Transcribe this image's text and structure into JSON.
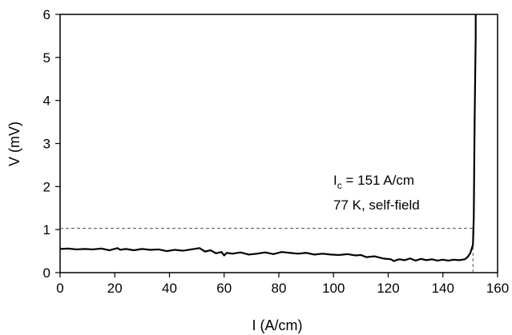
{
  "chart_data": {
    "type": "line",
    "xlabel": "I (A/cm)",
    "ylabel": "V (mV)",
    "xlim": [
      0,
      160
    ],
    "ylim": [
      0,
      6
    ],
    "xticks": [
      "0",
      "20",
      "40",
      "60",
      "80",
      "100",
      "120",
      "140",
      "160"
    ],
    "yticks": [
      "0",
      "1",
      "2",
      "3",
      "4",
      "5",
      "6"
    ],
    "grid": false,
    "legend": "none",
    "annotation": {
      "line1_main": "I",
      "line1_sub": "c",
      "line1_rest": " = 151 A/cm",
      "line2": "77 K, self-field"
    },
    "threshold": {
      "y": 1.03,
      "x_start": 0,
      "x_end": 151,
      "style": "dashed"
    },
    "ic_marker": {
      "x": 151,
      "y_start": 0,
      "y_end": 1.03,
      "style": "dashed"
    },
    "series": [
      {
        "color": "#000000",
        "x": [
          0,
          3,
          6,
          9,
          12,
          15,
          18,
          21,
          22,
          24,
          27,
          30,
          33,
          36,
          39,
          42,
          45,
          48,
          51,
          53,
          55,
          57,
          59,
          60,
          61,
          63,
          66,
          69,
          72,
          75,
          78,
          81,
          84,
          87,
          90,
          93,
          96,
          99,
          102,
          105,
          108,
          110,
          112,
          115,
          118,
          121,
          122,
          124,
          126,
          128,
          130,
          132,
          134,
          136,
          138,
          140,
          142,
          144,
          146,
          148,
          149,
          150,
          150.5,
          151,
          151.3,
          151.6,
          152,
          152
        ],
        "y": [
          0.55,
          0.56,
          0.54,
          0.55,
          0.54,
          0.56,
          0.52,
          0.57,
          0.53,
          0.55,
          0.52,
          0.55,
          0.53,
          0.54,
          0.5,
          0.53,
          0.51,
          0.54,
          0.57,
          0.49,
          0.52,
          0.45,
          0.48,
          0.4,
          0.46,
          0.44,
          0.47,
          0.42,
          0.44,
          0.47,
          0.43,
          0.48,
          0.46,
          0.44,
          0.46,
          0.42,
          0.44,
          0.42,
          0.41,
          0.43,
          0.4,
          0.41,
          0.36,
          0.38,
          0.33,
          0.31,
          0.27,
          0.31,
          0.29,
          0.33,
          0.28,
          0.32,
          0.29,
          0.31,
          0.28,
          0.3,
          0.28,
          0.3,
          0.29,
          0.31,
          0.36,
          0.45,
          0.55,
          0.65,
          1.3,
          3.5,
          5.5,
          6.0
        ]
      }
    ]
  }
}
